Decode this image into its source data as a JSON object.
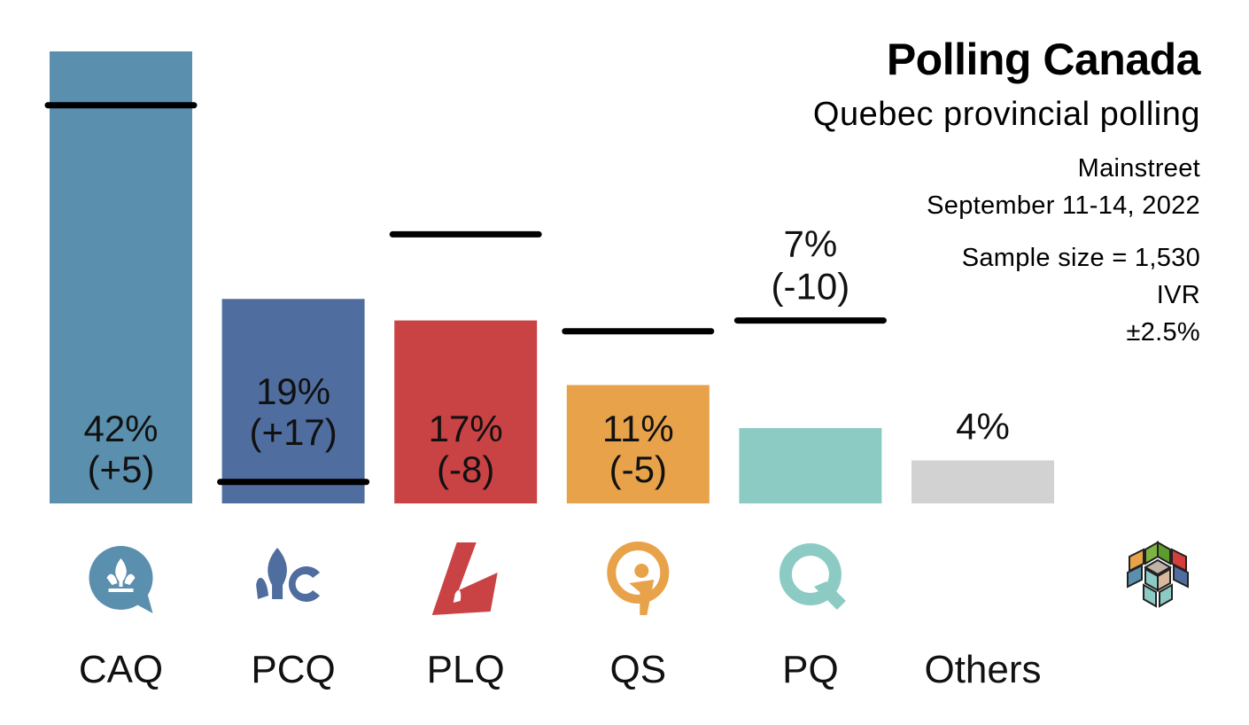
{
  "header": {
    "title": "Polling Canada",
    "subtitle": "Quebec provincial polling",
    "pollster": "Mainstreet",
    "dates": "September 11-14, 2022",
    "sample": "Sample size = 1,530",
    "method": "IVR",
    "margin": "±2.5%"
  },
  "chart_data": {
    "type": "bar",
    "categories": [
      "CAQ",
      "PCQ",
      "PLQ",
      "QS",
      "PQ",
      "Others"
    ],
    "values": [
      42,
      19,
      17,
      11,
      7,
      4
    ],
    "value_labels": [
      "42%",
      "19%",
      "17%",
      "11%",
      "7%",
      "4%"
    ],
    "change_labels": [
      "(+5)",
      "(+17)",
      "(-8)",
      "(-5)",
      "(-10)",
      ""
    ],
    "previous_values": [
      37,
      2,
      25,
      16,
      17,
      null
    ],
    "colors": [
      "#5b8fae",
      "#4f6d9e",
      "#c94244",
      "#e8a24a",
      "#8ccbc4",
      "#d2d2d2"
    ],
    "icons": [
      "caq-logo-icon",
      "pcq-logo-icon",
      "plq-logo-icon",
      "qs-logo-icon",
      "pq-logo-icon",
      ""
    ],
    "ylim": [
      0,
      42
    ],
    "legend": "none",
    "grid": false
  },
  "brand_icon": "polling-canada-logo-icon"
}
